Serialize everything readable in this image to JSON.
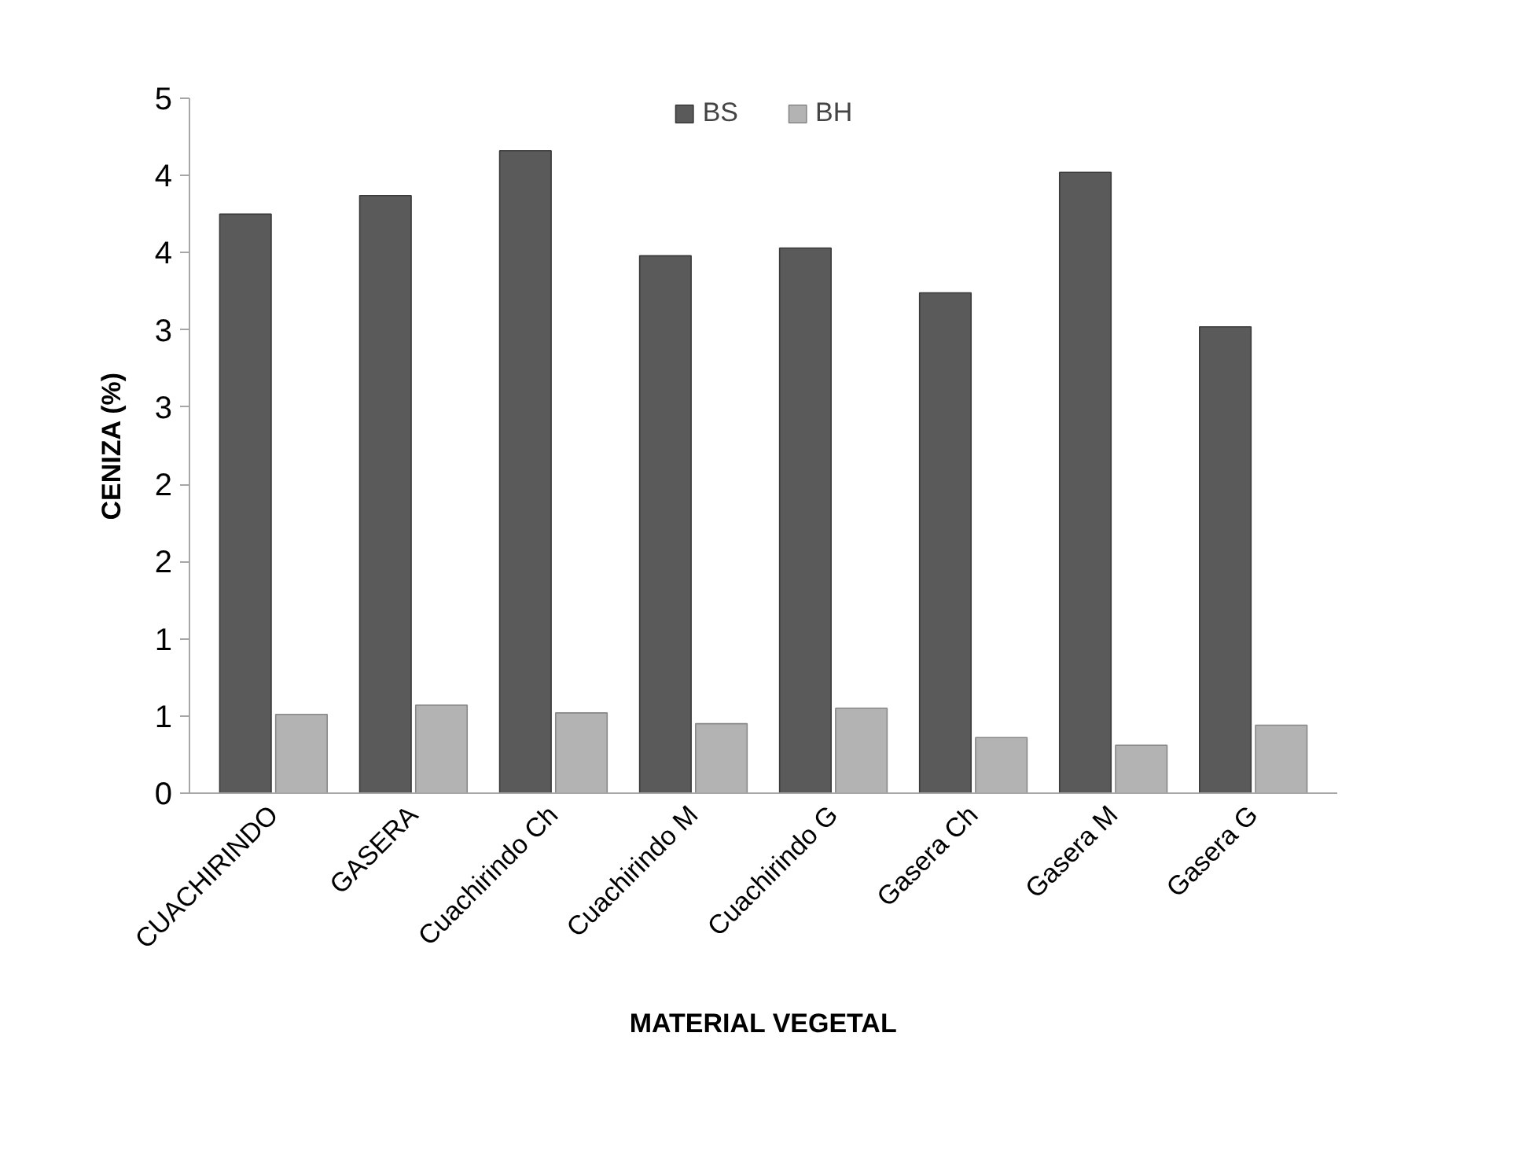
{
  "chart_data": {
    "type": "bar",
    "xlabel": "MATERIAL VEGETAL",
    "ylabel": "CENIZA (%)",
    "categories": [
      "CUACHIRINDO",
      "GASERA",
      "Cuachirindo Ch",
      "Cuachirindo M",
      "Cuachirindo G",
      "Gasera Ch",
      "Gasera M",
      "Gasera G"
    ],
    "series": [
      {
        "name": "BS",
        "color": "#5a5a5a",
        "values": [
          3.75,
          3.87,
          4.16,
          3.48,
          3.53,
          3.24,
          4.02,
          3.02
        ]
      },
      {
        "name": "BH",
        "color": "#b3b3b3",
        "values": [
          0.51,
          0.57,
          0.52,
          0.45,
          0.55,
          0.36,
          0.31,
          0.44
        ]
      }
    ],
    "ylim": [
      0,
      4.5
    ],
    "yticks": [
      0,
      {
        "value": 0.5,
        "label": "1"
      },
      1,
      {
        "value": 1.5,
        "label": "2"
      },
      2,
      {
        "value": 2.5,
        "label": "3"
      },
      3,
      {
        "value": 3.5,
        "label": "4"
      },
      4,
      {
        "value": 4.5,
        "label": "5"
      }
    ],
    "grid": false,
    "legend": "top"
  }
}
